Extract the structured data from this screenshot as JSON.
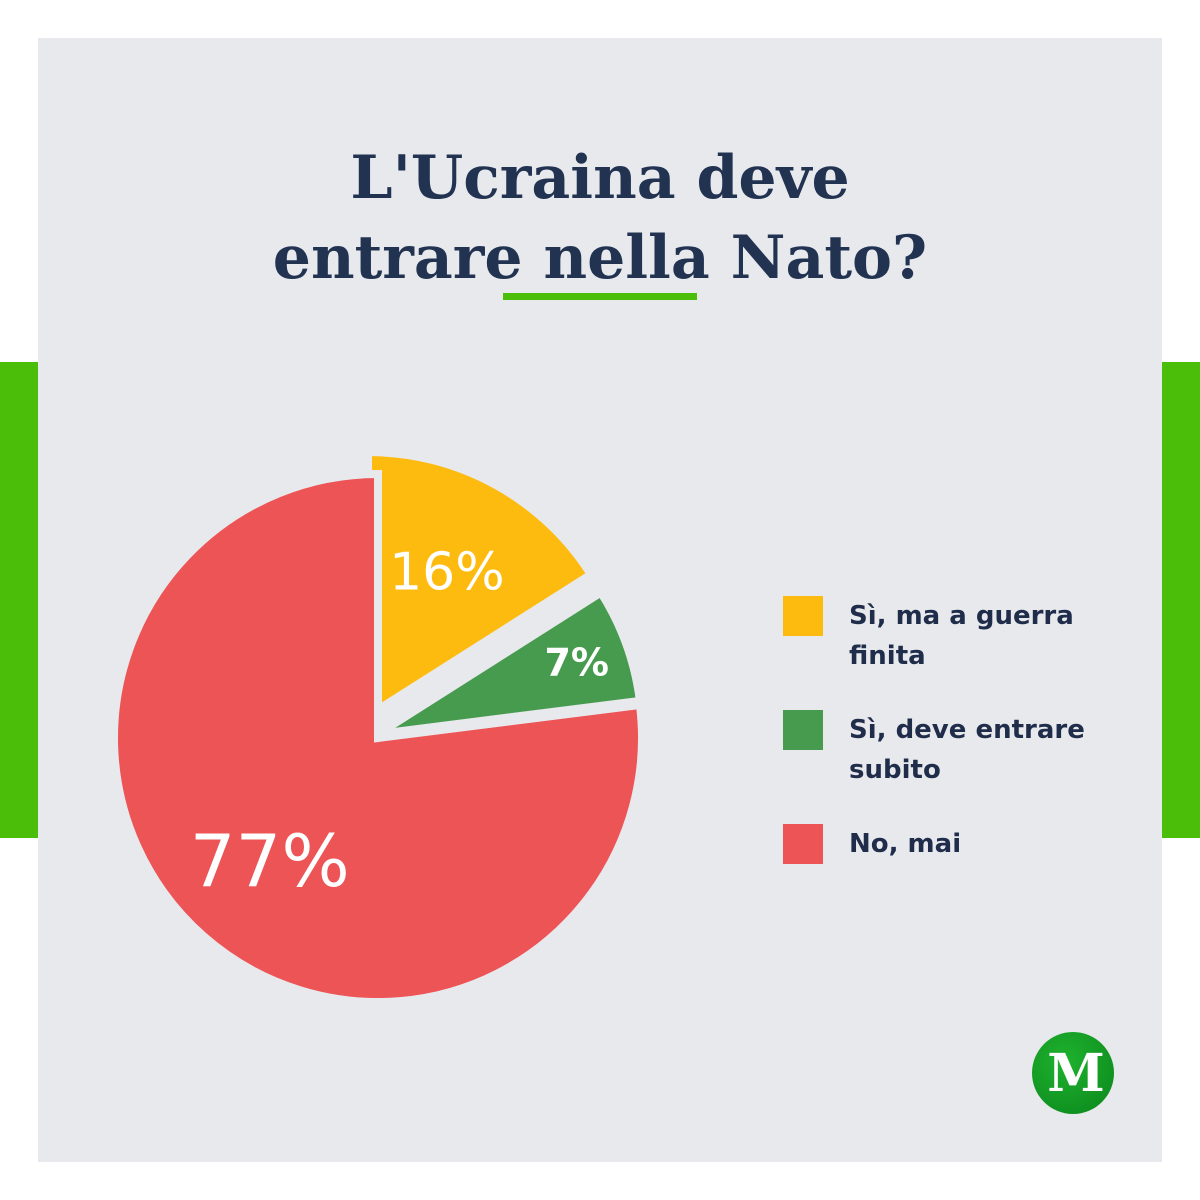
{
  "title_lines": [
    "L'Ucraina deve",
    "entrare nella Nato?"
  ],
  "colors": {
    "panel": "#E8E9ED",
    "accent_green": "#4BBE0A",
    "title": "#213351",
    "legend_text": "#1F2D4A",
    "white": "#FFFFFF"
  },
  "chart_data": {
    "type": "pie",
    "slices": [
      {
        "label": "Sì, ma a guerra finita",
        "value": 16,
        "value_label": "16%",
        "color": "#FDBB10"
      },
      {
        "label": "Sì, deve entrare subito",
        "value": 7,
        "value_label": "7%",
        "color": "#479B4E"
      },
      {
        "label": "No, mai",
        "value": 77,
        "value_label": "77%",
        "color": "#EC5456"
      }
    ],
    "legend_position": "right",
    "exploded_slices": [
      "Sì, ma a guerra finita",
      "Sì, deve entrare subito"
    ]
  },
  "logo": {
    "letter": "M",
    "colors": [
      "#1FB22E",
      "#0E8F1F"
    ]
  }
}
